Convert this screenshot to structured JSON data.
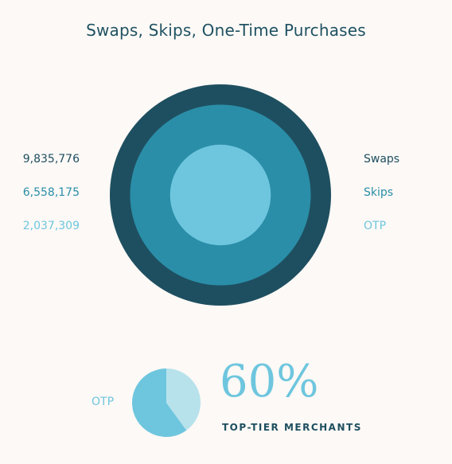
{
  "title": "Swaps, Skips, One-Time Purchases",
  "colors": {
    "swaps": "#1e4f60",
    "skips": "#2a8ea8",
    "otp": "#6ec6de",
    "pie_light": "#b7e2ec",
    "background": "#fdf9f6"
  },
  "chart_data": [
    {
      "type": "nested-circles",
      "title": "Swaps, Skips, One-Time Purchases",
      "series": [
        {
          "name": "Swaps",
          "value": 9835776,
          "value_label": "9,835,776"
        },
        {
          "name": "Skips",
          "value": 6558175,
          "value_label": "6,558,175"
        },
        {
          "name": "OTP",
          "value": 2037309,
          "value_label": "2,037,309"
        }
      ]
    },
    {
      "type": "pie",
      "slices": [
        {
          "name": "OTP",
          "value": 60
        },
        {
          "name": "",
          "value": 40
        }
      ],
      "headline": "60%",
      "caption": "TOP-TIER MERCHANTS"
    }
  ]
}
